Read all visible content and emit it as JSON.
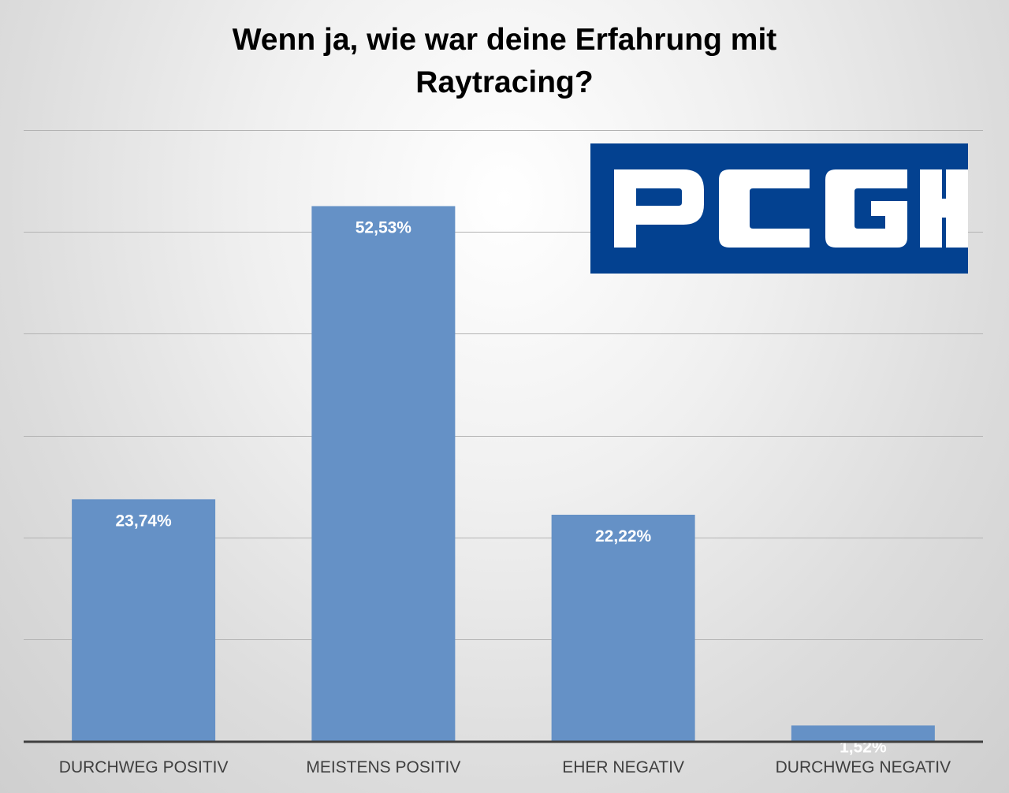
{
  "chart_data": {
    "type": "bar",
    "title": "Wenn ja, wie war deine Erfahrung mit Raytracing?",
    "title_lines": [
      "Wenn ja, wie war deine Erfahrung mit",
      "Raytracing?"
    ],
    "categories": [
      "DURCHWEG POSITIV",
      "MEISTENS POSITIV",
      "EHER NEGATIV",
      "DURCHWEG NEGATIV"
    ],
    "values": [
      23.74,
      52.53,
      22.22,
      1.52
    ],
    "data_labels": [
      "23,74%",
      "52,53%",
      "22,22%",
      "1,52%"
    ],
    "ylim": [
      0,
      60
    ],
    "grid": true,
    "legend": "none",
    "bar_color": "#6591c6",
    "label_color": "#ffffff"
  },
  "logo": {
    "text": "PCGH",
    "background": "#034190",
    "color": "#ffffff"
  }
}
